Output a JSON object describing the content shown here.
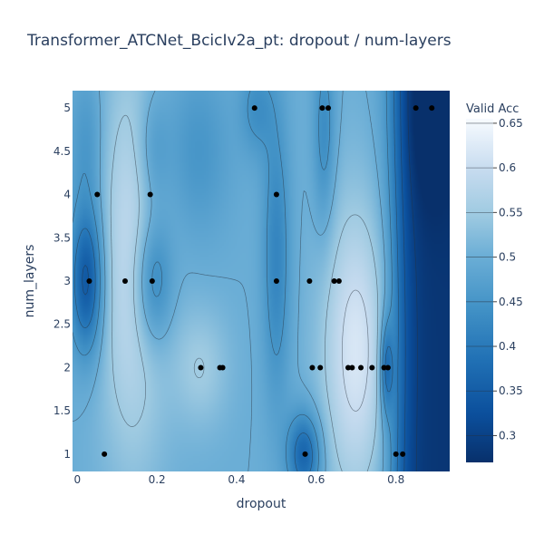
{
  "chart_data": {
    "type": "contour",
    "title": "Transformer_ATCNet_BcicIv2a_pt: dropout / num-layers",
    "xlabel": "dropout",
    "ylabel": "num_layers",
    "xlim": [
      -0.012,
      0.935
    ],
    "ylim": [
      0.8,
      5.2
    ],
    "x_ticks": [
      0,
      0.2,
      0.4,
      0.6,
      0.8
    ],
    "x_tick_labels": [
      "0",
      "0.2",
      "0.4",
      "0.6",
      "0.8"
    ],
    "y_ticks": [
      1,
      1.5,
      2,
      2.5,
      3,
      3.5,
      4,
      4.5,
      5
    ],
    "y_tick_labels": [
      "1",
      "1.5",
      "2",
      "2.5",
      "3",
      "3.5",
      "4",
      "4.5",
      "5"
    ],
    "colorbar": {
      "title": "Valid Acc",
      "range": [
        0.27,
        0.655
      ],
      "ticks": [
        0.3,
        0.35,
        0.4,
        0.45,
        0.5,
        0.55,
        0.6,
        0.65
      ],
      "tick_labels": [
        "0.3",
        "0.35",
        "0.4",
        "0.45",
        "0.5",
        "0.55",
        "0.6",
        "0.65"
      ],
      "colorscale": "Blues"
    },
    "points": [
      {
        "x": 0.03,
        "y": 3
      },
      {
        "x": 0.05,
        "y": 4
      },
      {
        "x": 0.068,
        "y": 1
      },
      {
        "x": 0.12,
        "y": 3
      },
      {
        "x": 0.183,
        "y": 4
      },
      {
        "x": 0.188,
        "y": 3
      },
      {
        "x": 0.31,
        "y": 2
      },
      {
        "x": 0.358,
        "y": 2
      },
      {
        "x": 0.365,
        "y": 2
      },
      {
        "x": 0.445,
        "y": 5
      },
      {
        "x": 0.5,
        "y": 4
      },
      {
        "x": 0.5,
        "y": 3
      },
      {
        "x": 0.572,
        "y": 1
      },
      {
        "x": 0.583,
        "y": 3
      },
      {
        "x": 0.59,
        "y": 2
      },
      {
        "x": 0.61,
        "y": 2
      },
      {
        "x": 0.615,
        "y": 5
      },
      {
        "x": 0.63,
        "y": 5
      },
      {
        "x": 0.645,
        "y": 3
      },
      {
        "x": 0.657,
        "y": 3
      },
      {
        "x": 0.68,
        "y": 2
      },
      {
        "x": 0.69,
        "y": 2
      },
      {
        "x": 0.712,
        "y": 2
      },
      {
        "x": 0.74,
        "y": 2
      },
      {
        "x": 0.77,
        "y": 2
      },
      {
        "x": 0.78,
        "y": 2
      },
      {
        "x": 0.8,
        "y": 1
      },
      {
        "x": 0.817,
        "y": 1
      },
      {
        "x": 0.85,
        "y": 5
      },
      {
        "x": 0.89,
        "y": 5
      }
    ]
  }
}
